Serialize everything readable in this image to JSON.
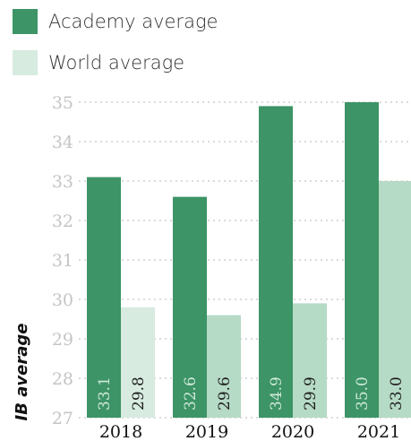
{
  "chart_data": {
    "type": "bar",
    "categories": [
      "2018",
      "2019",
      "2020",
      "2021"
    ],
    "series": [
      {
        "name": "Academy average",
        "values": [
          33.1,
          32.6,
          34.9,
          35.0
        ],
        "color": "#3d9466",
        "label_color": "#cfe9da"
      },
      {
        "name": "World average",
        "values": [
          29.8,
          29.6,
          29.9,
          33.0
        ],
        "colors": [
          "#d7ebe0",
          "#b5dac5",
          "#b5dac5",
          "#b5dac5"
        ],
        "label_color": "#1e1e1e"
      }
    ],
    "data_labels": [
      [
        "33.1",
        "32.6",
        "34.9",
        "35.0"
      ],
      [
        "29.8",
        "29.6",
        "29.9",
        "33.0"
      ]
    ],
    "ylabel": "IB average",
    "ylim": [
      27,
      35
    ],
    "yticks": [
      "27",
      "28",
      "29",
      "30",
      "31",
      "32",
      "33",
      "34",
      "35"
    ],
    "grid": true,
    "legend_position": "top-left"
  }
}
